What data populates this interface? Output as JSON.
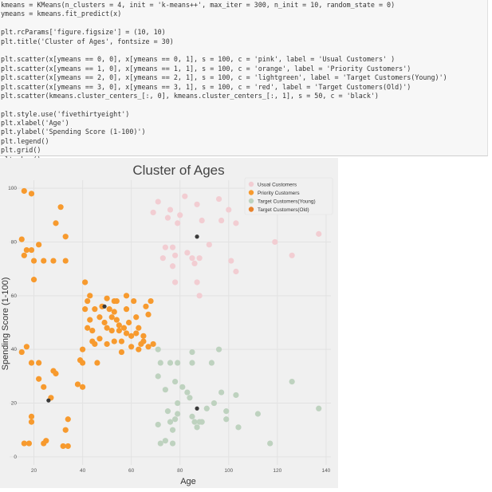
{
  "code_cell": {
    "lines": [
      "kmeans = KMeans(n_clusters = 4, init = 'k-means++', max_iter = 300, n_init = 10, random_state = 0)",
      "ymeans = kmeans.fit_predict(x)",
      "",
      "plt.rcParams['figure.figsize'] = (10, 10)",
      "plt.title('Cluster of Ages', fontsize = 30)",
      "",
      "plt.scatter(x[ymeans == 0, 0], x[ymeans == 0, 1], s = 100, c = 'pink', label = 'Usual Customers' )",
      "plt.scatter(x[ymeans == 1, 0], x[ymeans == 1, 1], s = 100, c = 'orange', label = 'Priority Customers')",
      "plt.scatter(x[ymeans == 2, 0], x[ymeans == 2, 1], s = 100, c = 'lightgreen', label = 'Target Customers(Young)')",
      "plt.scatter(x[ymeans == 3, 0], x[ymeans == 3, 1], s = 100, c = 'red', label = 'Target Customers(Old)')",
      "plt.scatter(kmeans.cluster_centers_[:, 0], kmeans.cluster_centers_[:, 1], s = 50, c = 'black')",
      "",
      "plt.style.use('fivethirtyeight')",
      "plt.xlabel('Age')",
      "plt.ylabel('Spending Score (1-100)')",
      "plt.legend()",
      "plt.grid()",
      "plt.show()"
    ]
  },
  "colors": {
    "usual": "#f2cdd2",
    "priority": "#f79a2e",
    "young": "#bed2bf",
    "old": "#e8822c",
    "center": "#3a3a3a"
  },
  "chart_data": {
    "type": "scatter",
    "title": "Cluster of Ages",
    "xlabel": "Age",
    "ylabel": "Spending Score (1-100)",
    "xlim": [
      10,
      142
    ],
    "ylim": [
      -3,
      103
    ],
    "xticks": [
      20,
      40,
      60,
      80,
      100,
      120,
      140
    ],
    "yticks": [
      0,
      20,
      40,
      60,
      80,
      100
    ],
    "grid": true,
    "legend_position": "top-right",
    "legend": [
      "Usual Customers",
      "Priority Customers",
      "Target Customers(Young)",
      "Target Customers(Old)"
    ],
    "series": [
      {
        "name": "Usual Customers",
        "color": "usual",
        "points": [
          [
            69,
            91
          ],
          [
            71,
            95
          ],
          [
            73,
            74
          ],
          [
            74,
            78
          ],
          [
            75,
            89
          ],
          [
            76,
            92
          ],
          [
            77,
            78
          ],
          [
            77,
            71
          ],
          [
            78,
            75
          ],
          [
            78,
            65
          ],
          [
            79,
            87
          ],
          [
            80,
            90
          ],
          [
            82,
            97
          ],
          [
            83,
            76
          ],
          [
            85,
            74
          ],
          [
            86,
            72
          ],
          [
            87,
            94
          ],
          [
            87,
            65
          ],
          [
            88,
            74
          ],
          [
            89,
            88
          ],
          [
            88,
            60
          ],
          [
            92,
            79
          ],
          [
            96,
            96
          ],
          [
            97,
            88
          ],
          [
            100,
            92
          ],
          [
            101,
            73
          ],
          [
            103,
            87
          ],
          [
            103,
            69
          ],
          [
            112,
            96
          ],
          [
            119,
            80
          ],
          [
            126,
            75
          ],
          [
            137,
            83
          ]
        ]
      },
      {
        "name": "Priority Customers",
        "color": "priority",
        "points": [
          [
            16,
            99
          ],
          [
            19,
            98
          ],
          [
            15,
            81
          ],
          [
            17,
            77
          ],
          [
            16,
            75
          ],
          [
            19,
            77
          ],
          [
            20,
            73
          ],
          [
            22,
            79
          ],
          [
            24,
            73
          ],
          [
            28,
            73
          ],
          [
            33,
            73
          ],
          [
            29,
            87
          ],
          [
            33,
            82
          ],
          [
            31,
            93
          ],
          [
            20,
            66
          ],
          [
            15,
            39
          ],
          [
            17,
            41
          ],
          [
            19,
            35
          ],
          [
            22,
            35
          ],
          [
            22,
            29
          ],
          [
            24,
            26
          ],
          [
            28,
            32
          ],
          [
            29,
            31
          ],
          [
            27,
            22
          ],
          [
            19,
            15
          ],
          [
            19,
            13
          ],
          [
            16,
            5
          ],
          [
            18,
            5
          ],
          [
            24,
            5
          ],
          [
            25,
            6
          ],
          [
            32,
            4
          ],
          [
            34,
            4
          ],
          [
            34,
            14
          ],
          [
            33,
            10
          ],
          [
            40,
            40
          ],
          [
            41,
            65
          ],
          [
            42,
            58
          ],
          [
            43,
            60
          ],
          [
            41,
            55
          ],
          [
            45,
            55
          ],
          [
            42,
            48
          ],
          [
            43,
            51
          ],
          [
            44,
            47
          ],
          [
            44,
            43
          ],
          [
            45,
            42
          ],
          [
            47,
            52
          ],
          [
            48,
            56
          ],
          [
            49,
            50
          ],
          [
            50,
            48
          ],
          [
            51,
            55
          ],
          [
            52,
            52
          ],
          [
            52,
            47
          ],
          [
            53,
            43
          ],
          [
            53,
            58
          ],
          [
            54,
            58
          ],
          [
            54,
            51
          ],
          [
            55,
            47
          ],
          [
            56,
            43
          ],
          [
            57,
            48
          ],
          [
            58,
            55
          ],
          [
            58,
            60
          ],
          [
            59,
            50
          ],
          [
            60,
            45
          ],
          [
            61,
            58
          ],
          [
            62,
            52
          ],
          [
            63,
            48
          ],
          [
            64,
            42
          ],
          [
            65,
            45
          ],
          [
            66,
            56
          ],
          [
            67,
            53
          ],
          [
            68,
            58
          ],
          [
            69,
            42
          ],
          [
            63,
            40
          ],
          [
            65,
            43
          ],
          [
            67,
            41
          ],
          [
            60,
            41
          ],
          [
            56,
            39
          ],
          [
            58,
            46
          ],
          [
            62,
            46
          ],
          [
            47,
            44
          ],
          [
            50,
            42
          ],
          [
            55,
            49
          ],
          [
            46,
            35
          ],
          [
            50,
            59
          ],
          [
            53,
            54
          ],
          [
            40,
            26
          ],
          [
            40,
            35
          ],
          [
            38,
            27
          ],
          [
            39,
            36
          ]
        ]
      },
      {
        "name": "Target Customers(Young)",
        "color": "young",
        "points": [
          [
            71,
            40
          ],
          [
            72,
            35
          ],
          [
            71,
            30
          ],
          [
            74,
            25
          ],
          [
            76,
            35
          ],
          [
            78,
            28
          ],
          [
            79,
            35
          ],
          [
            75,
            17
          ],
          [
            76,
            13
          ],
          [
            77,
            10
          ],
          [
            71,
            12
          ],
          [
            72,
            5
          ],
          [
            74,
            6
          ],
          [
            77,
            5
          ],
          [
            78,
            14
          ],
          [
            79,
            20
          ],
          [
            79,
            16
          ],
          [
            81,
            26
          ],
          [
            83,
            24
          ],
          [
            85,
            39
          ],
          [
            85,
            35
          ],
          [
            84,
            22
          ],
          [
            85,
            15
          ],
          [
            86,
            13
          ],
          [
            87,
            11
          ],
          [
            88,
            13
          ],
          [
            89,
            13
          ],
          [
            91,
            18
          ],
          [
            93,
            35
          ],
          [
            94,
            20
          ],
          [
            96,
            40
          ],
          [
            97,
            24
          ],
          [
            99,
            17
          ],
          [
            99,
            14
          ],
          [
            103,
            23
          ],
          [
            104,
            11
          ],
          [
            112,
            16
          ],
          [
            117,
            5
          ],
          [
            126,
            28
          ],
          [
            137,
            18
          ]
        ]
      },
      {
        "name": "Target Customers(Old)",
        "color": "old",
        "points": []
      },
      {
        "name": "",
        "color": "center",
        "size": "small",
        "points": [
          [
            26,
            21
          ],
          [
            49,
            56
          ],
          [
            87,
            82
          ],
          [
            87,
            18
          ]
        ]
      }
    ]
  }
}
